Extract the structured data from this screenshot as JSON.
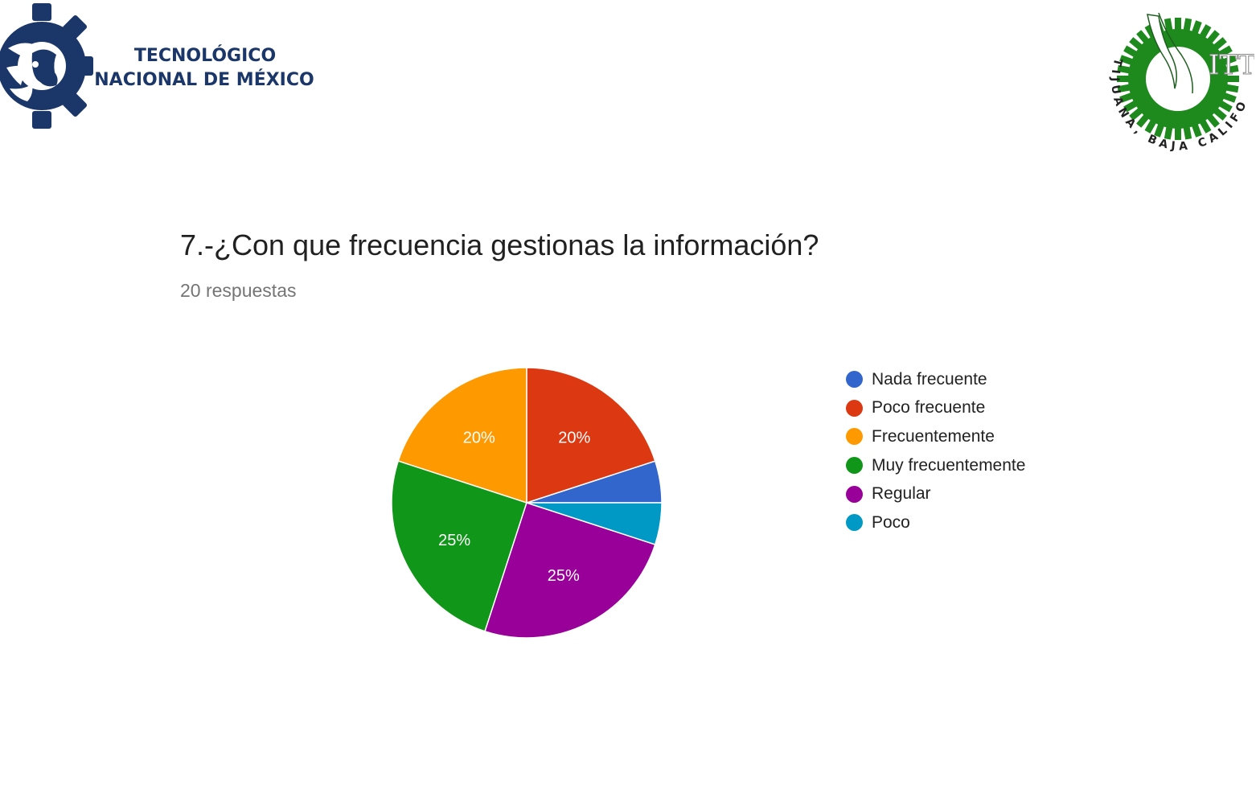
{
  "header": {
    "left_logo_line1": "TECNOLÓGICO",
    "left_logo_line2": "NACIONAL DE MÉXICO",
    "right_logo_text": "TIJUANA, BAJA CALIFORNIA",
    "right_logo_mark": "ITT"
  },
  "chart_data": {
    "type": "pie",
    "title": "7.-¿Con que frecuencia gestionas la información?",
    "subtitle": "20 respuestas",
    "legend_position": "right",
    "slices": [
      {
        "label": "Nada frecuente",
        "value": 5,
        "percent_label": "",
        "color": "#3366cc"
      },
      {
        "label": "Poco frecuente",
        "value": 20,
        "percent_label": "20%",
        "color": "#dc3912"
      },
      {
        "label": "Frecuentemente",
        "value": 20,
        "percent_label": "20%",
        "color": "#ff9900"
      },
      {
        "label": "Muy frecuentemente",
        "value": 25,
        "percent_label": "25%",
        "color": "#109618"
      },
      {
        "label": "Regular",
        "value": 25,
        "percent_label": "25%",
        "color": "#990099"
      },
      {
        "label": "Poco",
        "value": 5,
        "percent_label": "",
        "color": "#0099c6"
      }
    ]
  },
  "colors": {
    "tecnm_blue": "#1b3668",
    "itt_green": "#1e8a1e"
  }
}
